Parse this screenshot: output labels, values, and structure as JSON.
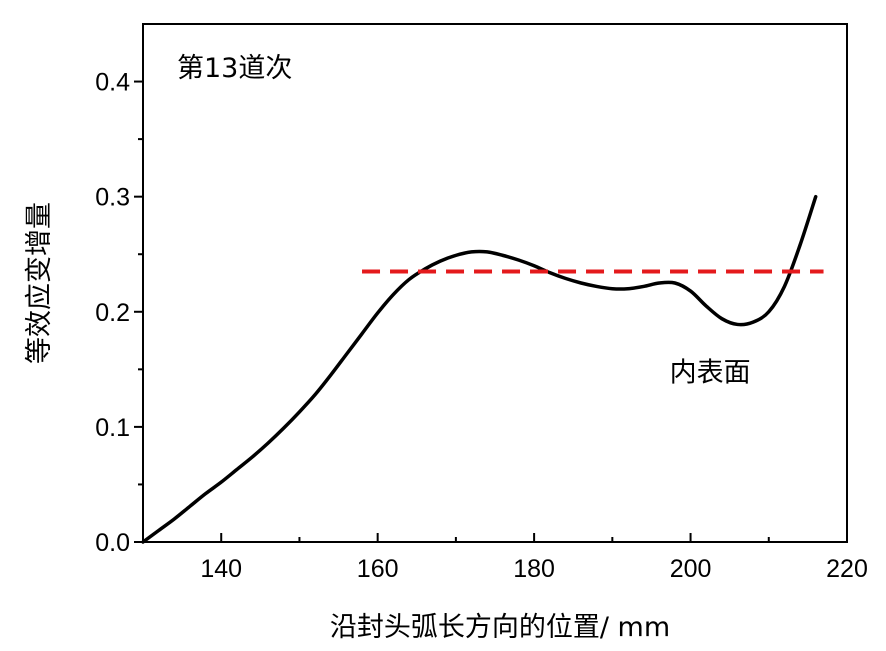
{
  "chart_data": {
    "type": "line",
    "title": "",
    "panel_label": "第13道次",
    "xlabel": "沿封头弧长方向的位置/ mm",
    "ylabel": "等效应变增量",
    "xlim": [
      130,
      220
    ],
    "ylim": [
      0,
      0.45
    ],
    "x_ticks": [
      140,
      160,
      180,
      200,
      220
    ],
    "x_tick_labels": [
      "140",
      "160",
      "180",
      "200",
      "220"
    ],
    "x_minor_ticks": [
      150,
      170,
      190,
      210
    ],
    "y_ticks": [
      0.0,
      0.1,
      0.2,
      0.3,
      0.4
    ],
    "y_tick_labels": [
      "0.0",
      "0.1",
      "0.2",
      "0.3",
      "0.4"
    ],
    "y_minor_ticks": [
      0.05,
      0.15,
      0.25,
      0.35
    ],
    "grid": false,
    "series": [
      {
        "style": "solid",
        "color": "#000000",
        "x": [
          130,
          132,
          134,
          136,
          138,
          140,
          142,
          144,
          146,
          148,
          150,
          152,
          154,
          156,
          158,
          160,
          162,
          164,
          166,
          168,
          170,
          172,
          174,
          176,
          178,
          180,
          182,
          184,
          186,
          188,
          190,
          192,
          194,
          196,
          198,
          200,
          202,
          204,
          206,
          208,
          210,
          212,
          214,
          216
        ],
        "y": [
          0.0,
          0.01,
          0.02,
          0.031,
          0.042,
          0.052,
          0.063,
          0.074,
          0.086,
          0.099,
          0.113,
          0.128,
          0.145,
          0.163,
          0.181,
          0.199,
          0.215,
          0.228,
          0.237,
          0.244,
          0.249,
          0.252,
          0.252,
          0.249,
          0.245,
          0.24,
          0.234,
          0.229,
          0.225,
          0.222,
          0.22,
          0.22,
          0.222,
          0.225,
          0.225,
          0.218,
          0.205,
          0.194,
          0.189,
          0.191,
          0.2,
          0.222,
          0.258,
          0.3
        ]
      },
      {
        "style": "dashed",
        "color": "#e41a1c",
        "x": [
          158,
          217
        ],
        "y": [
          0.235,
          0.235
        ]
      }
    ],
    "annotations": [
      {
        "text": "内表面",
        "x": 202.5,
        "y": 0.15
      }
    ]
  }
}
